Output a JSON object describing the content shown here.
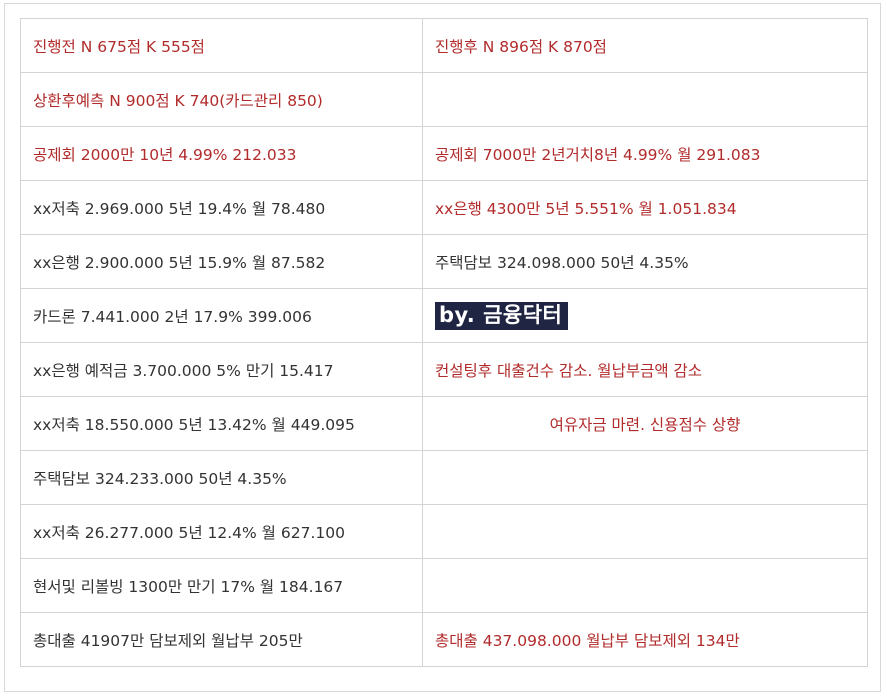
{
  "rows": [
    {
      "left": "진행전 N 675점 K 555점",
      "right": "진행후 N 896점 K 870점"
    },
    {
      "left": "상환후예측 N 900점 K 740(카드관리 850)",
      "right": ""
    },
    {
      "left": "공제회 2000만 10년 4.99% 212.033",
      "right": "공제회 7000만 2년거치8년 4.99% 월 291.083"
    },
    {
      "left": "xx저축  2.969.000 5년 19.4% 월 78.480",
      "right": "xx은행 4300만 5년 5.551% 월 1.051.834"
    },
    {
      "left": "xx은행 2.900.000 5년 15.9% 월 87.582",
      "right": "주택담보 324.098.000 50년 4.35%"
    },
    {
      "left": "카드론 7.441.000  2년 17.9% 399.006",
      "right": ""
    },
    {
      "left": "xx은행 예적금 3.700.000 5% 만기 15.417",
      "right": "컨설팅후 대출건수 감소. 월납부금액 감소"
    },
    {
      "left": "xx저축 18.550.000 5년 13.42% 월 449.095",
      "right": "여유자금 마련. 신용점수 상향"
    },
    {
      "left": "주택담보 324.233.000 50년 4.35%",
      "right": ""
    },
    {
      "left": "xx저축 26.277.000 5년 12.4% 월 627.100",
      "right": ""
    },
    {
      "left": "현서및 리볼빙 1300만 만기 17% 월 184.167",
      "right": ""
    },
    {
      "left": "총대출 41907만 담보제외 월납부 205만",
      "right": "총대출 437.098.000 월납부 담보제외 134만"
    }
  ],
  "watermark": "by. 금융닥터",
  "colors": {
    "red_text": "#b22b2b",
    "dark_text": "#333333",
    "border": "#d4d4d4",
    "watermark_bg": "#1f2542",
    "watermark_text": "#ffffff"
  }
}
